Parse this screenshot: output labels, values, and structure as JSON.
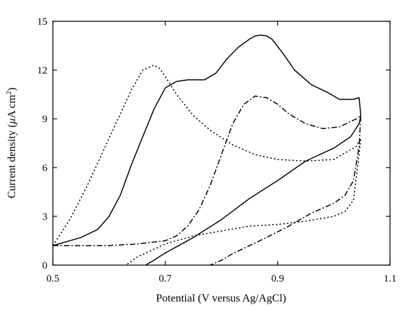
{
  "chart_data": {
    "type": "line",
    "title": "",
    "xlabel": "Potential (V versus Ag/AgCl)",
    "ylabel_parts": {
      "before": "Current density (",
      "mu": "μ",
      "unit": "A cm",
      "exp": "2",
      "after": ")"
    },
    "xlim": [
      0.5,
      1.1
    ],
    "ylim": [
      0,
      15
    ],
    "x_ticks": [
      0.5,
      0.7,
      0.9,
      1.1
    ],
    "x_tick_labels": [
      "0.5",
      "0.7",
      "0.9",
      "1.1"
    ],
    "y_ticks": [
      0,
      3,
      6,
      9,
      12,
      15
    ],
    "y_tick_labels": [
      "0",
      "3",
      "6",
      "9",
      "12",
      "15"
    ],
    "grid": false,
    "series": [
      {
        "style": "solid",
        "x": [
          0.5,
          0.55,
          0.58,
          0.6,
          0.62,
          0.64,
          0.66,
          0.68,
          0.7,
          0.72,
          0.74,
          0.77,
          0.79,
          0.81,
          0.83,
          0.85,
          0.86,
          0.87,
          0.88,
          0.89,
          0.91,
          0.93,
          0.96,
          0.99,
          1.01,
          1.035,
          1.045,
          1.048,
          1.045,
          1.03,
          1.0,
          0.95,
          0.9,
          0.85,
          0.8,
          0.75,
          0.7,
          0.68,
          0.665
        ],
        "y": [
          1.2,
          1.7,
          2.2,
          3.0,
          4.3,
          6.2,
          7.9,
          9.6,
          10.9,
          11.3,
          11.4,
          11.4,
          11.8,
          12.7,
          13.4,
          13.9,
          14.1,
          14.15,
          14.1,
          13.9,
          13.0,
          12.0,
          11.1,
          10.6,
          10.2,
          10.2,
          10.3,
          9.2,
          8.7,
          7.9,
          7.2,
          6.4,
          5.2,
          4.1,
          2.8,
          1.7,
          0.75,
          0.3,
          0.0
        ]
      },
      {
        "style": "dotted",
        "x": [
          0.5,
          0.53,
          0.56,
          0.58,
          0.6,
          0.62,
          0.64,
          0.66,
          0.68,
          0.69,
          0.7,
          0.72,
          0.75,
          0.78,
          0.82,
          0.86,
          0.9,
          0.95,
          1.0,
          1.04,
          1.048,
          1.045,
          1.035,
          1.02,
          1.0,
          0.95,
          0.9,
          0.85,
          0.8,
          0.75,
          0.7,
          0.65,
          0.63
        ],
        "y": [
          1.2,
          2.8,
          4.8,
          6.3,
          7.8,
          9.3,
          10.8,
          12.0,
          12.3,
          12.1,
          11.6,
          10.5,
          9.2,
          8.3,
          7.4,
          6.8,
          6.5,
          6.4,
          6.5,
          7.3,
          7.8,
          6.8,
          4.0,
          3.3,
          3.0,
          2.7,
          2.5,
          2.4,
          2.1,
          1.8,
          1.3,
          0.5,
          0.0
        ]
      },
      {
        "style": "dash-dot",
        "x": [
          0.5,
          0.55,
          0.6,
          0.65,
          0.7,
          0.72,
          0.74,
          0.76,
          0.78,
          0.8,
          0.82,
          0.84,
          0.86,
          0.88,
          0.9,
          0.92,
          0.95,
          0.98,
          1.01,
          1.04,
          1.048,
          1.045,
          1.035,
          1.02,
          1.0,
          0.96,
          0.92,
          0.88,
          0.85,
          0.82,
          0.8,
          0.78
        ],
        "y": [
          1.2,
          1.2,
          1.2,
          1.3,
          1.5,
          1.8,
          2.4,
          3.4,
          4.9,
          6.8,
          8.7,
          9.9,
          10.4,
          10.3,
          9.9,
          9.3,
          8.7,
          8.4,
          8.5,
          9.0,
          9.2,
          7.3,
          5.2,
          4.3,
          3.8,
          3.2,
          2.4,
          1.7,
          1.2,
          0.7,
          0.3,
          0.0
        ]
      }
    ]
  }
}
